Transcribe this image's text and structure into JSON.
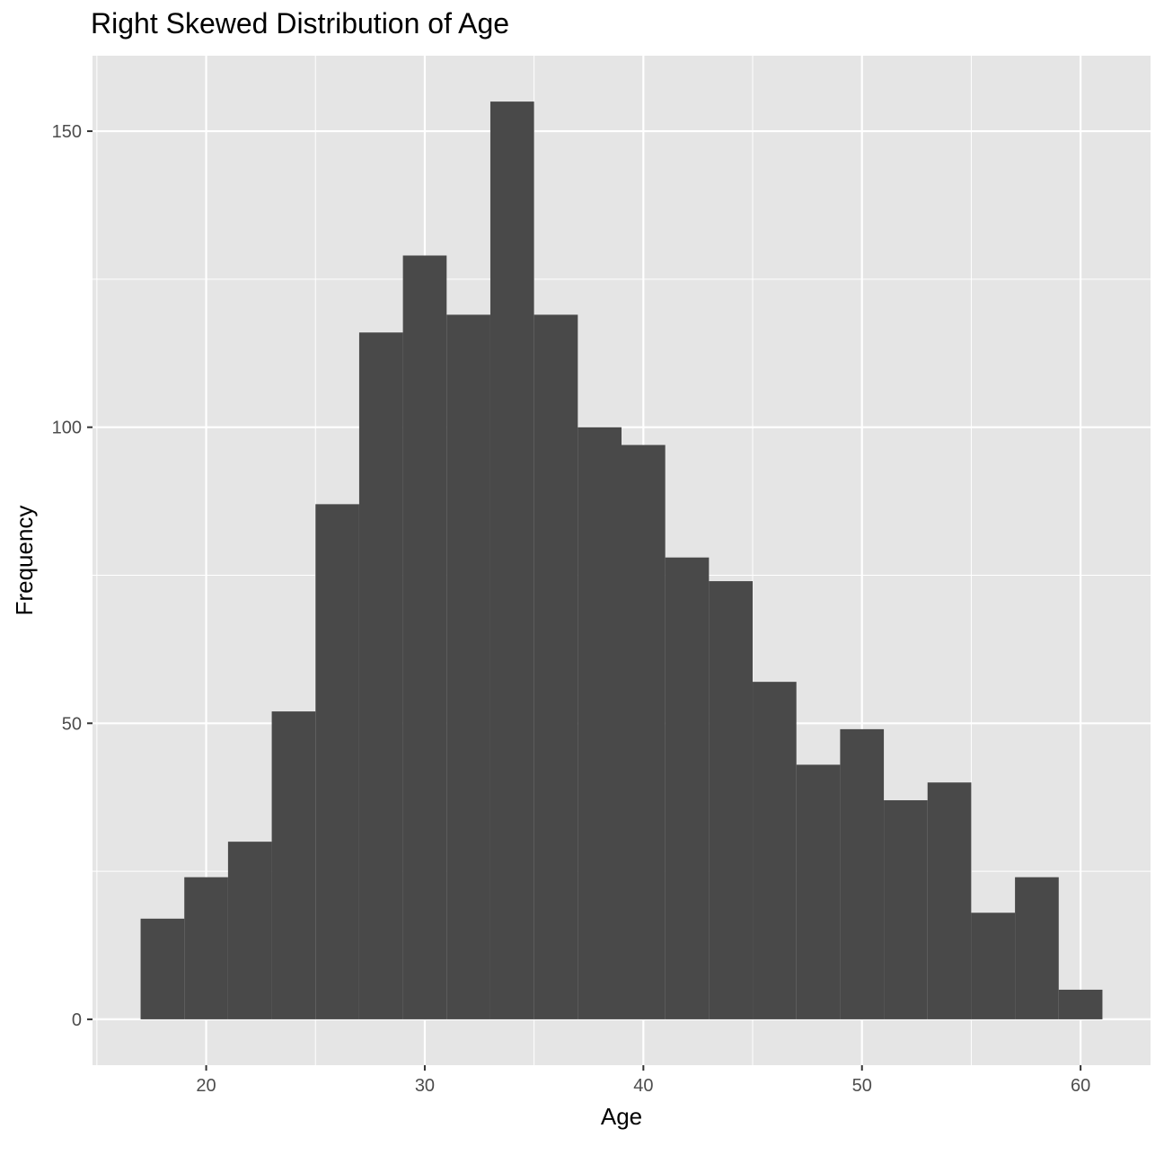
{
  "chart_data": {
    "type": "bar",
    "title": "Right Skewed Distribution of Age",
    "xlabel": "Age",
    "ylabel": "Frequency",
    "bin_width": 2,
    "bins": [
      {
        "start": 17,
        "end": 19,
        "count": 17
      },
      {
        "start": 19,
        "end": 21,
        "count": 24
      },
      {
        "start": 21,
        "end": 23,
        "count": 30
      },
      {
        "start": 23,
        "end": 25,
        "count": 52
      },
      {
        "start": 25,
        "end": 27,
        "count": 87
      },
      {
        "start": 27,
        "end": 29,
        "count": 116
      },
      {
        "start": 29,
        "end": 31,
        "count": 129
      },
      {
        "start": 31,
        "end": 33,
        "count": 119
      },
      {
        "start": 33,
        "end": 35,
        "count": 155
      },
      {
        "start": 35,
        "end": 37,
        "count": 119
      },
      {
        "start": 37,
        "end": 39,
        "count": 100
      },
      {
        "start": 39,
        "end": 41,
        "count": 97
      },
      {
        "start": 41,
        "end": 43,
        "count": 78
      },
      {
        "start": 43,
        "end": 45,
        "count": 74
      },
      {
        "start": 45,
        "end": 47,
        "count": 57
      },
      {
        "start": 47,
        "end": 49,
        "count": 43
      },
      {
        "start": 49,
        "end": 51,
        "count": 49
      },
      {
        "start": 51,
        "end": 53,
        "count": 37
      },
      {
        "start": 53,
        "end": 55,
        "count": 40
      },
      {
        "start": 55,
        "end": 57,
        "count": 18
      },
      {
        "start": 57,
        "end": 59,
        "count": 24
      },
      {
        "start": 59,
        "end": 61,
        "count": 5
      }
    ],
    "xlim": [
      14.8,
      63.2
    ],
    "ylim": [
      -7.75,
      162.75
    ],
    "x_ticks": [
      20,
      30,
      40,
      50,
      60
    ],
    "y_ticks": [
      0,
      50,
      100,
      150
    ],
    "x_tick_labels": [
      "20",
      "30",
      "40",
      "50",
      "60"
    ],
    "y_tick_labels": [
      "0",
      "50",
      "100",
      "150"
    ],
    "grid": true,
    "legend": "none",
    "colors": {
      "panel_background": "#e5e5e5",
      "grid_line": "#ffffff",
      "bar_fill": "#494949",
      "tick_mark": "#333333",
      "tick_text": "#4d4d4d",
      "text": "#000000"
    }
  }
}
